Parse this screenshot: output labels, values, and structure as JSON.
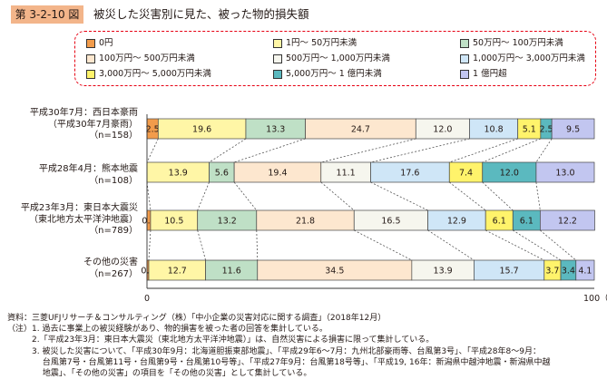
{
  "header": {
    "figure_number": "第 3-2-10 図",
    "title": "被災した災害別に見た、被った物的損失額"
  },
  "legend": [
    {
      "label": "0円",
      "color": "#f29c4b"
    },
    {
      "label": "1円～ 50万円未満",
      "color": "#fff6a6"
    },
    {
      "label": "50万円～ 100万円未満",
      "color": "#bfe0c6"
    },
    {
      "label": "100万円～ 500万円未満",
      "color": "#fde7cf"
    },
    {
      "label": "500万円～ 1,000万円未満",
      "color": "#f6f6ee"
    },
    {
      "label": "1,000万円～ 3,000万円未満",
      "color": "#cfe6f7"
    },
    {
      "label": "3,000万円～ 5,000万円未満",
      "color": "#fff36b"
    },
    {
      "label": "5,000万円～ 1 億円未満",
      "color": "#5bb9bf"
    },
    {
      "label": "1 億円超",
      "color": "#c2c6f0"
    }
  ],
  "chart_data": {
    "type": "bar",
    "orientation": "horizontal",
    "stacked": true,
    "percent": true,
    "categories": [
      {
        "lines": [
          "平成30年7月：西日本豪雨",
          "（平成30年7月豪雨）",
          "（n=158）"
        ]
      },
      {
        "lines": [
          "平成28年4月：熊本地震",
          "（n=108）"
        ]
      },
      {
        "lines": [
          "平成23年3月：東日本大震災",
          "（東北地方太平洋沖地震）",
          "（n=789）"
        ]
      },
      {
        "lines": [
          "その他の災害",
          "（n=267）"
        ]
      }
    ],
    "series": [
      {
        "name": "0円",
        "values": [
          2.5,
          0,
          0.8,
          0.4
        ]
      },
      {
        "name": "1円～ 50万円未満",
        "values": [
          19.6,
          13.9,
          10.5,
          12.7
        ]
      },
      {
        "name": "50万円～ 100万円未満",
        "values": [
          13.3,
          5.6,
          13.2,
          11.6
        ]
      },
      {
        "name": "100万円～ 500万円未満",
        "values": [
          24.7,
          19.4,
          21.8,
          34.5
        ]
      },
      {
        "name": "500万円～ 1,000万円未満",
        "values": [
          12.0,
          11.1,
          16.5,
          13.9
        ]
      },
      {
        "name": "1,000万円～ 3,000万円未満",
        "values": [
          10.8,
          17.6,
          12.9,
          15.7
        ]
      },
      {
        "name": "3,000万円～ 5,000万円未満",
        "values": [
          5.1,
          7.4,
          6.1,
          3.7
        ]
      },
      {
        "name": "5,000万円～ 1 億円未満",
        "values": [
          2.5,
          12.0,
          6.1,
          3.4
        ]
      },
      {
        "name": "1 億円超",
        "values": [
          9.5,
          13.0,
          12.2,
          4.1
        ]
      }
    ],
    "xlim": [
      0,
      100
    ],
    "xticks": [
      "0",
      "100（%）"
    ]
  },
  "notes": [
    "資料：三菱UFJリサーチ＆コンサルティング（株）「中小企業の災害対応に関する調査」（2018年12月）",
    "（注）1. 過去に事業上の被災経験があり、物的損害を被った者の回答を集計している。",
    "　　　2.「平成23年3月：東日本大震災（東北地方太平洋沖地震）」は、自然災害による損害に限って集計している。",
    "　　　3. 被災した災害について、「平成30年9月：北海道胆振東部地震」、「平成29年6～7月：九州北部豪雨等、台風第3号」、「平成28年8～9月：",
    "　　　　 台風第7号・台風第11号・台風第9号・台風第10号等」、「平成27年9月：台風第18号等」、「平成19, 16年：新潟県中越沖地震・新潟県中越",
    "　　　　 地震」、「その他の災害」の項目を「その他の災害」として集計している。"
  ]
}
